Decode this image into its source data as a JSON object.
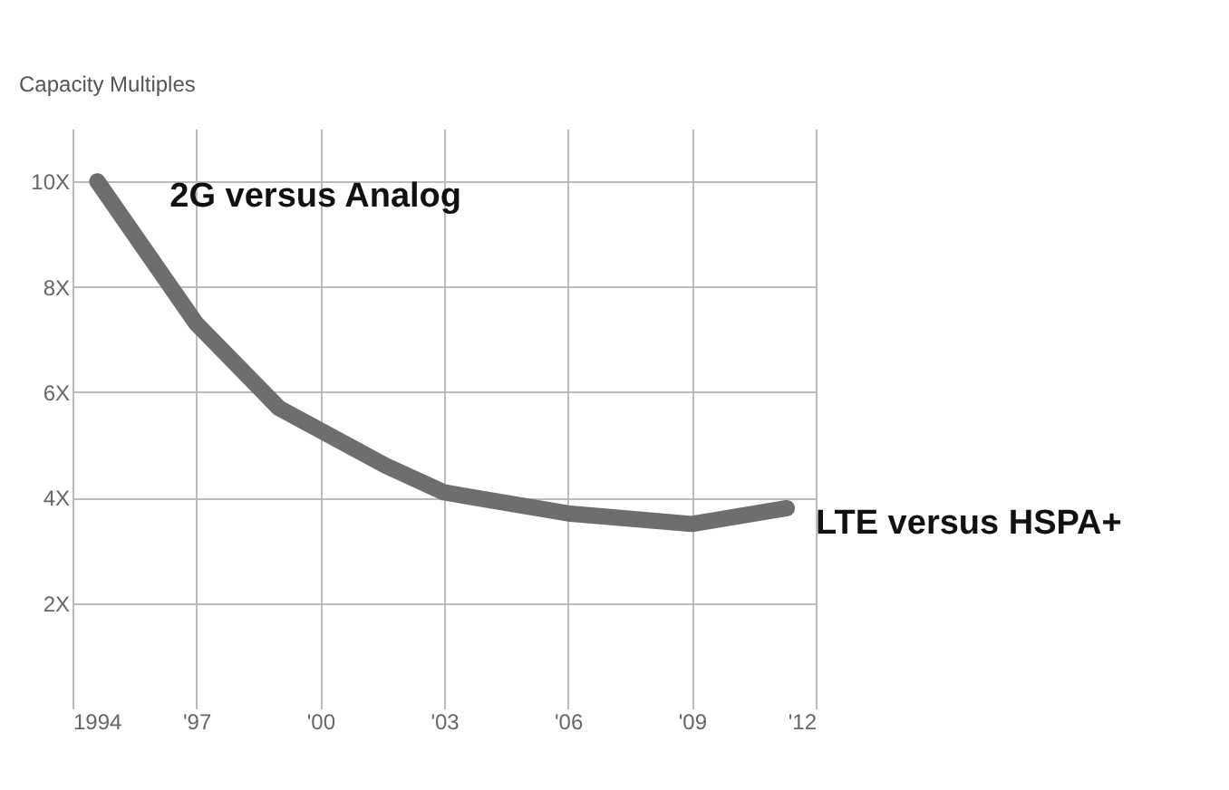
{
  "chart_data": {
    "type": "line",
    "ylabel": "Capacity Multiples",
    "x": [
      1994.6,
      1997,
      1999,
      2001.6,
      2003,
      2006,
      2009,
      2011.3
    ],
    "series": [
      {
        "color": "#6e6e6e",
        "values": [
          10,
          7.3,
          5.7,
          4.6,
          4.1,
          3.7,
          3.5,
          3.8
        ]
      }
    ],
    "xlim": [
      1994,
      2012
    ],
    "xticks": [
      {
        "value": 1994,
        "label": "1994"
      },
      {
        "value": 1997,
        "label": "'97"
      },
      {
        "value": 2000,
        "label": "'00"
      },
      {
        "value": 2003,
        "label": "'03"
      },
      {
        "value": 2006,
        "label": "'06"
      },
      {
        "value": 2009,
        "label": "'09"
      },
      {
        "value": 2012,
        "label": "'12"
      }
    ],
    "ylim": [
      0,
      11
    ],
    "yticks": [
      {
        "value": 2,
        "label": "2X"
      },
      {
        "value": 4,
        "label": "4X"
      },
      {
        "value": 6,
        "label": "6X"
      },
      {
        "value": 8,
        "label": "8X"
      },
      {
        "value": 10,
        "label": "10X"
      }
    ],
    "grid": true,
    "line_style": "solid",
    "annotations": [
      {
        "text": "2G versus Analog",
        "x": 1994.6,
        "y": 10
      },
      {
        "text": "LTE versus HSPA+",
        "x": 2011.3,
        "y": 3.8
      }
    ]
  }
}
